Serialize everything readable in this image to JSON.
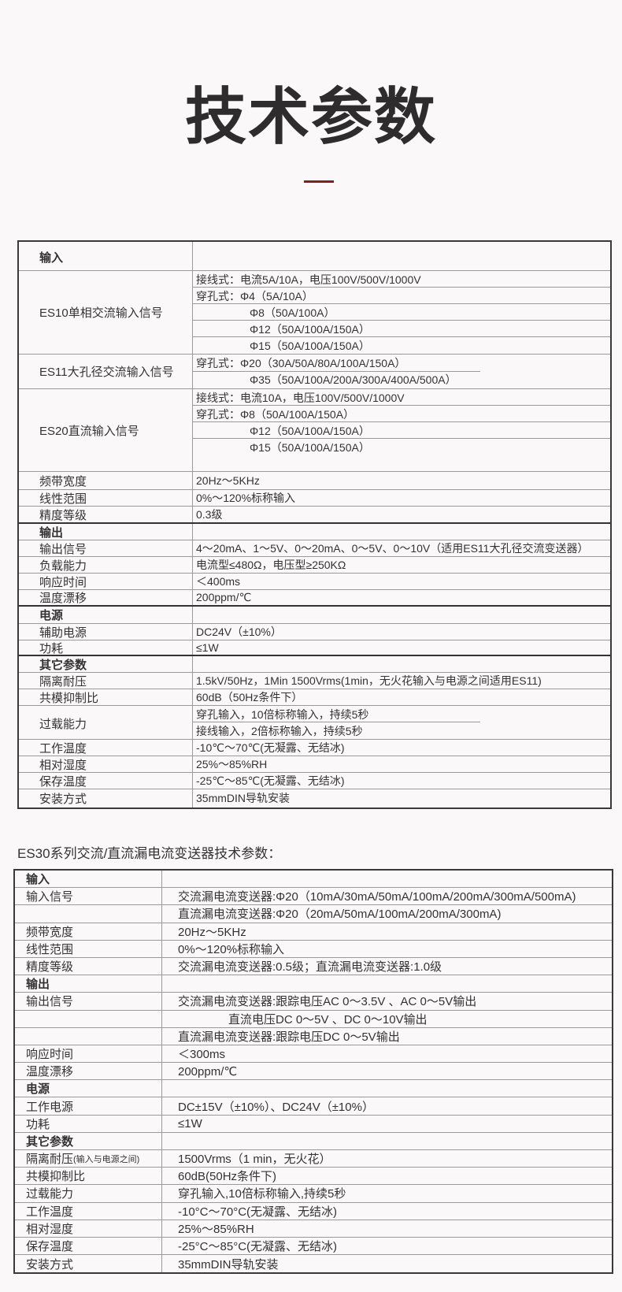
{
  "title": "技术参数",
  "accent_color": "#8b1a1a",
  "table1": {
    "rows": [
      {
        "label": "输入",
        "bold": true,
        "values": [
          ""
        ]
      },
      {
        "label": "ES10单相交流输入信号",
        "values": [
          "接线式：电流5A/10A，电压100V/500V/1000V",
          "穿孔式：Φ4（5A/10A）",
          "Φ8（50A/100A）",
          "Φ12（50A/100A/150A）",
          "Φ15（50A/100A/150A）"
        ]
      },
      {
        "label": "ES11大孔径交流输入信号",
        "values": [
          "穿孔式：Φ20（30A/50A/80A/100A/150A）",
          "Φ35（50A/100A/200A/300A/400A/500A）"
        ]
      },
      {
        "label": "ES20直流输入信号",
        "values": [
          "接线式：电流10A，电压100V/500V/1000V",
          "穿孔式：Φ8（50A/100A/150A）",
          "Φ12（50A/100A/150A）",
          "Φ15（50A/100A/150A）"
        ]
      },
      {
        "label": "频带宽度",
        "values": [
          "20Hz～5KHz"
        ]
      },
      {
        "label": "线性范围",
        "values": [
          "0%～120%标称输入"
        ]
      },
      {
        "label": "精度等级",
        "values": [
          "0.3级"
        ]
      },
      {
        "label": "输出",
        "bold": true,
        "values": [
          ""
        ]
      },
      {
        "label": "输出信号",
        "values": [
          "4～20mA、1～5V、0～20mA、0～5V、0～10V（适用ES11大孔径交流变送器）"
        ]
      },
      {
        "label": "负载能力",
        "values": [
          "电流型≤480Ω，电压型≥250KΩ"
        ]
      },
      {
        "label": "响应时间",
        "values": [
          "＜400ms"
        ]
      },
      {
        "label": "温度漂移",
        "values": [
          "200ppm/℃"
        ]
      },
      {
        "label": "电源",
        "bold": true,
        "values": [
          ""
        ]
      },
      {
        "label": "辅助电源",
        "values": [
          "DC24V（±10%）"
        ]
      },
      {
        "label": "功耗",
        "values": [
          "≤1W"
        ]
      },
      {
        "label": "其它参数",
        "bold": true,
        "values": [
          ""
        ]
      },
      {
        "label": "隔离耐压",
        "values": [
          "1.5kV/50Hz，1Min    1500Vrms(1min，无火花输入与电源之间适用ES11)"
        ]
      },
      {
        "label": "共模抑制比",
        "values": [
          "60dB（50Hz条件下）"
        ]
      },
      {
        "label": "过载能力",
        "values": [
          "穿孔输入，10倍标称输入，持续5秒",
          "接线输入，2倍标称输入，持续5秒"
        ]
      },
      {
        "label": "工作温度",
        "values": [
          "-10℃～70℃(无凝露、无结冰)"
        ]
      },
      {
        "label": "相对湿度",
        "values": [
          "25%～85%RH"
        ]
      },
      {
        "label": "保存温度",
        "values": [
          "-25℃～85℃(无凝露、无结冰)"
        ]
      },
      {
        "label": "安装方式",
        "values": [
          "35mmDIN导轨安装"
        ]
      }
    ]
  },
  "table2": {
    "heading": "ES30系列交流/直流漏电流变送器技术参数：",
    "rows": [
      {
        "label": "输入",
        "bold": true,
        "value": ""
      },
      {
        "label": "输入信号",
        "value": "交流漏电流变送器:Φ20（10mA/30mA/50mA/100mA/200mA/300mA/500mA)"
      },
      {
        "label": "",
        "value": "直流漏电流变送器:Φ20（20mA/50mA/100mA/200mA/300mA)"
      },
      {
        "label": "频带宽度",
        "value": "20Hz～5KHz"
      },
      {
        "label": "线性范围",
        "value": "0%～120%标称输入"
      },
      {
        "label": "精度等级",
        "value": "交流漏电流变送器:0.5级；直流漏电流变送器:1.0级"
      },
      {
        "label": "输出",
        "bold": true,
        "value": ""
      },
      {
        "label": "输出信号",
        "value": "交流漏电流变送器:跟踪电压AC 0～3.5V 、AC 0～5V输出"
      },
      {
        "label": "",
        "value": "直流电压DC 0～5V 、DC 0～10V输出"
      },
      {
        "label": "",
        "value": "直流漏电流变送器:跟踪电压DC 0～5V输出"
      },
      {
        "label": "响应时间",
        "value": "＜300ms"
      },
      {
        "label": "温度漂移",
        "value": "200ppm/℃"
      },
      {
        "label": "电源",
        "bold": true,
        "value": ""
      },
      {
        "label": "工作电源",
        "value": "DC±15V（±10%）、DC24V（±10%）"
      },
      {
        "label": "功耗",
        "value": "≤1W"
      },
      {
        "label": "其它参数",
        "bold": true,
        "value": ""
      },
      {
        "label": "隔离耐压",
        "note": "(输入与电源之间)",
        "value": "1500Vrms（1 min，无火花）"
      },
      {
        "label": "共模抑制比",
        "value": "60dB(50Hz条件下)"
      },
      {
        "label": "过载能力",
        "value": "穿孔输入,10倍标称输入,持续5秒"
      },
      {
        "label": "工作温度",
        "value": "-10°C～70°C(无凝露、无结冰)"
      },
      {
        "label": "相对湿度",
        "value": "25%～85%RH"
      },
      {
        "label": "保存温度",
        "value": "-25°C～85°C(无凝露、无结冰)"
      },
      {
        "label": "安装方式",
        "value": "35mmDIN导轨安装"
      }
    ]
  }
}
